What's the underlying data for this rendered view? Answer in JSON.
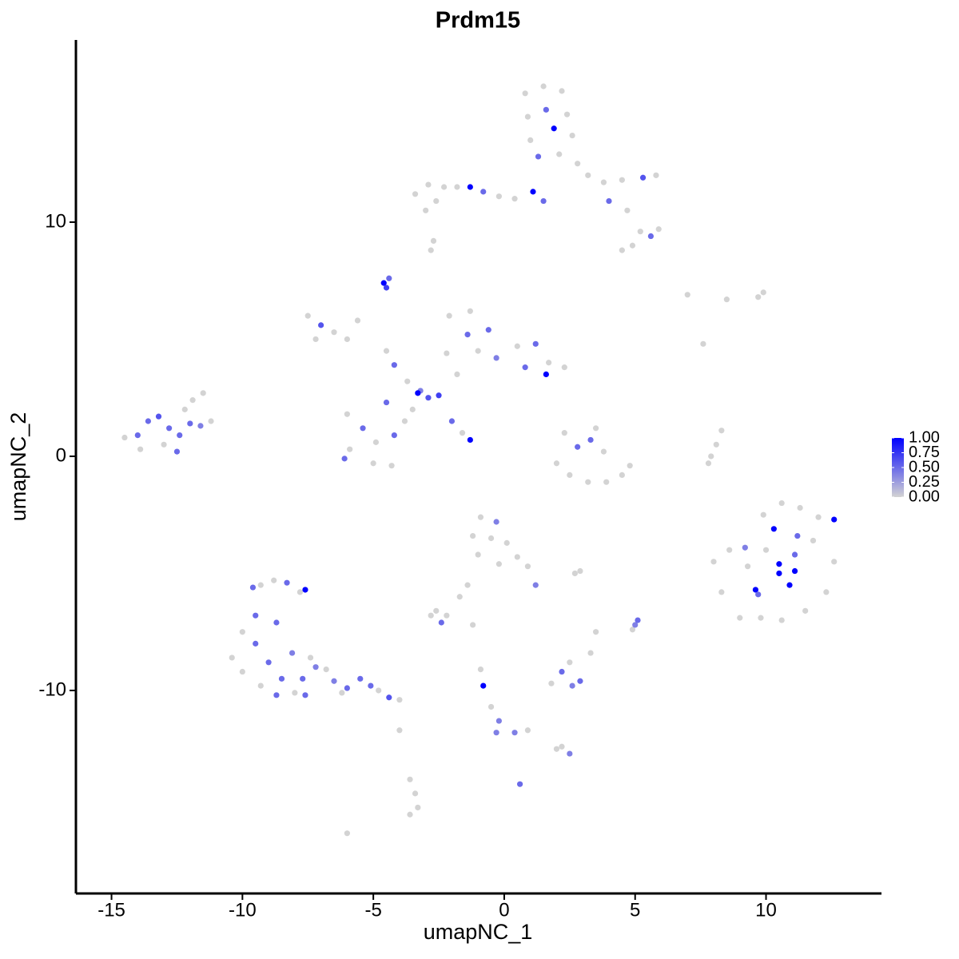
{
  "chart_data": {
    "type": "scatter",
    "title": "Prdm15",
    "xlabel": "umapNC_1",
    "ylabel": "umapNC_2",
    "xlim": [
      -16.36,
      14.41
    ],
    "ylim": [
      -18.67,
      17.78
    ],
    "xticks": [
      -15,
      -10,
      -5,
      0,
      5,
      10
    ],
    "yticks": [
      -10,
      0,
      10
    ],
    "colors": [
      "#d3d3d3",
      "#0000ff"
    ],
    "clim": [
      0,
      1
    ],
    "cticks": [
      {
        "value": 0,
        "label": "0.00"
      },
      {
        "value": 0.25,
        "label": "0.25"
      },
      {
        "value": 0.5,
        "label": "0.50"
      },
      {
        "value": 0.75,
        "label": "0.75"
      },
      {
        "value": 1,
        "label": "1.00"
      }
    ],
    "x": [
      0.8,
      1.5,
      2.2,
      0.9,
      1.6,
      2.4,
      1.0,
      1.9,
      2.6,
      1.3,
      2.1,
      2.8,
      3.2,
      3.8,
      4.5,
      5.3,
      5.8,
      4.0,
      4.7,
      5.2,
      5.6,
      5.9,
      4.9,
      4.5,
      -3.4,
      -2.9,
      -2.3,
      -1.8,
      -1.3,
      -0.8,
      -0.2,
      0.4,
      1.1,
      1.5,
      -3.0,
      -2.6,
      -2.8,
      -2.7,
      -4.6,
      -4.5,
      -4.4,
      -7.5,
      -7.0,
      -6.5,
      -6.0,
      -5.6,
      -7.2,
      -4.5,
      -4.2,
      -3.7,
      -3.2,
      -2.9,
      -2.5,
      -3.3,
      -2.0,
      -1.6,
      -1.3,
      -6.0,
      -5.4,
      -4.9,
      -4.2,
      -3.8,
      -5.9,
      -5.0,
      -4.3,
      -6.1,
      -4.5,
      -3.5,
      -2.1,
      -1.3,
      -0.6,
      -1.4,
      -1.0,
      -0.3,
      0.5,
      1.2,
      1.7,
      2.3,
      1.6,
      0.8,
      -1.8,
      -2.2,
      -14.5,
      -14.0,
      -13.6,
      -13.2,
      -12.8,
      -12.4,
      -12.0,
      -11.6,
      -11.2,
      -11.9,
      -12.5,
      -13.0,
      -13.9,
      -12.2,
      -11.5,
      2.3,
      2.8,
      3.3,
      3.5,
      2.0,
      2.5,
      3.2,
      3.9,
      4.5,
      4.8,
      3.8,
      7.9,
      8.1,
      8.3,
      7.8,
      8.0,
      8.6,
      9.2,
      9.9,
      10.6,
      11.3,
      12.0,
      12.6,
      10.3,
      11.2,
      9.6,
      10.5,
      10.5,
      11.1,
      10.9,
      11.1,
      9.7,
      9.0,
      9.8,
      10.6,
      11.5,
      12.3,
      12.6,
      8.3,
      10.0,
      11.8,
      9.3,
      -10.4,
      -10.0,
      -9.5,
      -9.3,
      -8.8,
      -8.3,
      -7.8,
      -7.6,
      -9.6,
      -9.5,
      -9.0,
      -8.5,
      -8.7,
      -8.1,
      -7.7,
      -7.4,
      -7.2,
      -8.0,
      -9.3,
      -10.0,
      -8.7,
      -7.6,
      -6.8,
      -6.5,
      -6.0,
      -5.5,
      -5.1,
      -4.8,
      -4.4,
      -4.0,
      -6.2,
      -0.9,
      -0.3,
      -1.2,
      -0.5,
      0.1,
      0.5,
      0.9,
      1.2,
      -1.0,
      -1.4,
      -1.7,
      -0.2,
      2.7,
      2.9,
      -2.8,
      -2.4,
      -2.2,
      -2.6,
      -1.2,
      3.5,
      1.8,
      2.2,
      2.5,
      2.9,
      2.6,
      3.3,
      5.0,
      5.1,
      4.9,
      -0.8,
      -0.9,
      -0.5,
      -0.2,
      -0.3,
      0.4,
      0.9,
      2.0,
      2.5,
      2.2,
      0.6,
      -3.6,
      -3.4,
      -3.3,
      -3.6,
      -4.0,
      -6.0,
      7.0,
      8.5,
      9.7,
      9.9,
      7.6
    ],
    "y": [
      15.5,
      15.8,
      15.6,
      14.5,
      14.8,
      14.6,
      13.5,
      14.0,
      13.7,
      12.8,
      12.9,
      12.5,
      12.0,
      11.7,
      11.8,
      11.9,
      12.0,
      10.9,
      10.5,
      9.6,
      9.4,
      9.7,
      9.0,
      8.8,
      11.2,
      11.6,
      11.5,
      11.5,
      11.5,
      11.3,
      11.1,
      11.0,
      11.3,
      10.9,
      10.5,
      10.9,
      8.8,
      9.2,
      7.4,
      7.2,
      7.6,
      6.0,
      5.6,
      5.3,
      5.0,
      5.8,
      5.0,
      4.5,
      3.9,
      3.2,
      2.8,
      2.5,
      2.6,
      2.7,
      1.5,
      1.0,
      0.7,
      1.8,
      1.2,
      0.6,
      0.9,
      1.5,
      0.3,
      -0.3,
      -0.4,
      -0.1,
      2.3,
      2.0,
      6.0,
      6.2,
      5.4,
      5.2,
      4.5,
      4.2,
      4.7,
      4.8,
      4.0,
      3.8,
      3.5,
      3.8,
      3.5,
      4.4,
      0.8,
      0.9,
      1.5,
      1.7,
      1.2,
      0.9,
      1.4,
      1.3,
      1.5,
      2.4,
      0.2,
      0.5,
      0.3,
      2.0,
      2.7,
      1.0,
      0.4,
      0.7,
      1.2,
      -0.3,
      -0.8,
      -1.1,
      -1.1,
      -0.8,
      -0.4,
      0.2,
      0.0,
      0.5,
      1.1,
      -0.3,
      -4.5,
      -4.0,
      -3.9,
      -2.5,
      -2.0,
      -2.2,
      -2.6,
      -2.7,
      -3.1,
      -3.4,
      -5.7,
      -4.6,
      -5.0,
      -4.9,
      -5.5,
      -4.2,
      -5.9,
      -6.9,
      -6.9,
      -7.0,
      -6.6,
      -5.8,
      -4.5,
      -5.8,
      -4.0,
      -3.6,
      -4.7,
      -8.6,
      -7.5,
      -6.8,
      -5.5,
      -5.3,
      -5.4,
      -5.8,
      -5.7,
      -5.6,
      -8.0,
      -8.8,
      -9.5,
      -7.1,
      -8.4,
      -9.5,
      -8.6,
      -9.0,
      -10.1,
      -9.8,
      -9.2,
      -10.2,
      -10.2,
      -9.1,
      -9.6,
      -9.9,
      -9.5,
      -9.8,
      -10.0,
      -10.3,
      -10.4,
      -10.1,
      -2.6,
      -2.8,
      -3.4,
      -3.5,
      -3.7,
      -4.3,
      -4.7,
      -5.5,
      -4.2,
      -5.5,
      -6.0,
      -4.6,
      -5.0,
      -4.9,
      -6.8,
      -7.1,
      -6.8,
      -6.6,
      -7.2,
      -7.5,
      -9.7,
      -9.2,
      -8.8,
      -9.6,
      -9.8,
      -8.4,
      -7.2,
      -7.0,
      -7.4,
      -9.8,
      -9.1,
      -10.7,
      -11.3,
      -11.8,
      -11.8,
      -11.7,
      -12.5,
      -12.7,
      -12.4,
      -14.0,
      -13.8,
      -14.4,
      -15.0,
      -15.3,
      -11.7,
      -16.1,
      6.9,
      6.7,
      6.8,
      7.0,
      4.8
    ],
    "values": [
      0,
      0,
      0,
      0,
      0.5,
      0,
      0,
      1,
      0,
      0.5,
      0,
      0,
      0,
      0,
      0,
      0.6,
      0,
      0.5,
      0,
      0,
      0.5,
      0,
      0,
      0,
      0,
      0,
      0,
      0,
      1,
      0.5,
      0,
      0,
      1,
      0.5,
      0,
      0,
      0,
      0,
      1,
      0.7,
      0.5,
      0,
      0.6,
      0,
      0,
      0,
      0,
      0,
      0.5,
      0,
      0.4,
      0.6,
      0.7,
      1,
      0.5,
      0,
      1,
      0,
      0.5,
      0,
      0.5,
      0,
      0,
      0,
      0,
      0.5,
      0.5,
      0,
      0,
      0,
      0.5,
      0.5,
      0,
      0.4,
      0,
      0.5,
      0,
      0,
      1,
      0.5,
      0,
      0,
      0,
      0.5,
      0.5,
      0.6,
      0.5,
      0.5,
      0.5,
      0.4,
      0,
      0,
      0.5,
      0,
      0,
      0,
      0,
      0,
      0.5,
      0.5,
      0,
      0,
      0,
      0,
      0,
      0,
      0,
      0,
      0,
      0,
      0,
      0,
      0,
      0,
      0.4,
      0,
      0,
      0,
      0,
      1,
      1,
      0.5,
      1,
      1,
      1,
      1,
      1,
      0.5,
      0.5,
      0,
      0,
      0,
      0,
      0,
      0,
      0,
      0,
      0,
      0,
      0,
      0,
      0.5,
      0,
      0,
      0.5,
      0,
      1,
      0.5,
      0.5,
      0.5,
      0.5,
      0.5,
      0.4,
      0.5,
      0,
      0.4,
      0,
      0,
      0,
      0.5,
      0.5,
      0,
      0.4,
      0.5,
      0.5,
      0.5,
      0,
      0.6,
      0,
      0,
      0,
      0.4,
      0,
      0,
      0,
      0,
      0,
      0.4,
      0,
      0,
      0,
      0,
      0,
      0,
      0,
      0.5,
      0,
      0,
      0,
      0,
      0,
      0.5,
      0,
      0.5,
      0.4,
      0,
      0.4,
      0.5,
      0,
      1,
      0,
      0,
      0.4,
      0.4,
      0.4,
      0,
      0,
      0.4,
      0,
      0.5,
      0,
      0,
      0,
      0,
      0,
      0,
      0,
      0,
      0,
      0,
      0
    ]
  }
}
